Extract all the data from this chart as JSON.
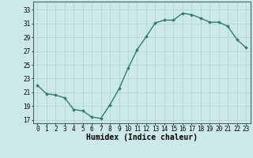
{
  "x": [
    0,
    1,
    2,
    3,
    4,
    5,
    6,
    7,
    8,
    9,
    10,
    11,
    12,
    13,
    14,
    15,
    16,
    17,
    18,
    19,
    20,
    21,
    22,
    23
  ],
  "y": [
    22.0,
    20.8,
    20.6,
    20.2,
    18.5,
    18.3,
    17.4,
    17.2,
    19.2,
    21.5,
    24.5,
    27.2,
    29.1,
    31.1,
    31.5,
    31.5,
    32.5,
    32.3,
    31.8,
    31.2,
    31.2,
    30.6,
    28.7,
    27.5
  ],
  "line_color": "#2e7d6e",
  "marker": "D",
  "marker_size": 1.8,
  "bg_color": "#cce8e8",
  "grid_color": "#b0d0d0",
  "xlabel": "Humidex (Indice chaleur)",
  "xlabel_fontsize": 7,
  "yticks": [
    17,
    19,
    21,
    23,
    25,
    27,
    29,
    31,
    33
  ],
  "xticks": [
    0,
    1,
    2,
    3,
    4,
    5,
    6,
    7,
    8,
    9,
    10,
    11,
    12,
    13,
    14,
    15,
    16,
    17,
    18,
    19,
    20,
    21,
    22,
    23
  ],
  "xlim": [
    -0.5,
    23.5
  ],
  "ylim": [
    16.5,
    34.2
  ],
  "tick_fontsize": 5.5,
  "line_width": 1.0
}
